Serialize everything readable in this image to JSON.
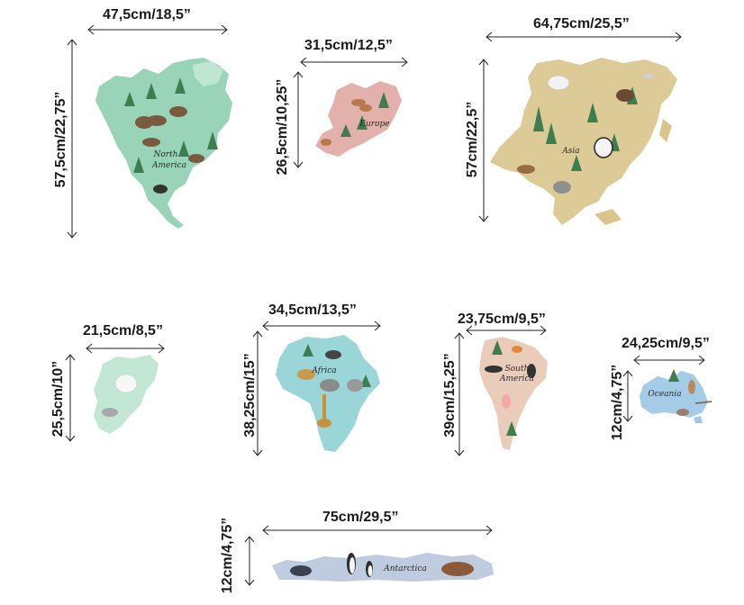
{
  "colors": {
    "north_america": "#8fcfb0",
    "europe": "#e0a9a3",
    "asia": "#d9c58c",
    "greenland": "#bfe6d2",
    "africa": "#8fd0d4",
    "south_america": "#e9c9b7",
    "oceania": "#9fc9e6",
    "antarctica": "#b8c6dc",
    "tree": "#3e7d4f",
    "animal": "#7a5a3e",
    "arrow": "#222222"
  },
  "pieces": [
    {
      "id": "north-america",
      "label_line1": "North",
      "label_line2": "America",
      "width_dim": "47,5cm/18,5”",
      "height_dim": "57,5cm/22,75”"
    },
    {
      "id": "europe",
      "label_line1": "Europe",
      "label_line2": "",
      "width_dim": "31,5cm/12,5”",
      "height_dim": "26,5cm/10,25”"
    },
    {
      "id": "asia",
      "label_line1": "Asia",
      "label_line2": "",
      "width_dim": "64,75cm/25,5”",
      "height_dim": "57cm/22,5”"
    },
    {
      "id": "greenland",
      "label_line1": "",
      "label_line2": "",
      "width_dim": "21,5cm/8,5”",
      "height_dim": "25,5cm/10”"
    },
    {
      "id": "africa",
      "label_line1": "Africa",
      "label_line2": "",
      "width_dim": "34,5cm/13,5”",
      "height_dim": "38,25cm/15”"
    },
    {
      "id": "south-america",
      "label_line1": "South",
      "label_line2": "America",
      "width_dim": "23,75cm/9,5”",
      "height_dim": "39cm/15,25”"
    },
    {
      "id": "oceania",
      "label_line1": "Oceania",
      "label_line2": "",
      "width_dim": "24,25cm/9,5”",
      "height_dim": "12cm/4,75”"
    },
    {
      "id": "antarctica",
      "label_line1": "Antarctica",
      "label_line2": "",
      "width_dim": "75cm/29,5”",
      "height_dim": "12cm/4,75”"
    }
  ]
}
